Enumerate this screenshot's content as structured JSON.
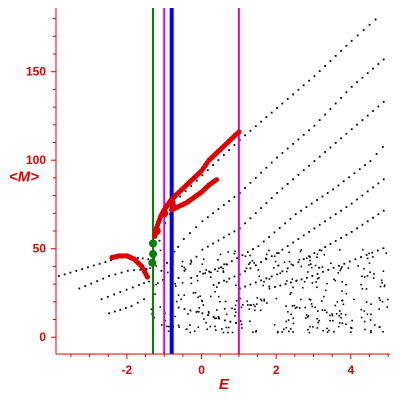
{
  "chart_data": {
    "type": "scatter",
    "title": "",
    "xlabel": "E",
    "ylabel": "<M>",
    "xlim": [
      -3.9,
      5.05
    ],
    "ylim": [
      -9.5,
      186
    ],
    "xticks": [
      -2,
      0,
      2,
      4
    ],
    "yticks": [
      0,
      50,
      100,
      150
    ],
    "xtick_labels": [
      "-2",
      "0",
      "2",
      "4"
    ],
    "ytick_labels": [
      "0",
      "50",
      "100",
      "150"
    ],
    "grid": false,
    "legend": "none",
    "colors": {
      "axes": "#e00000",
      "dots": "#000000",
      "highlight": "#e00000",
      "green_line": "#008000",
      "blue_line": "#0000ff",
      "magenta_line": "#e000e0"
    },
    "vertical_lines": [
      {
        "x": -1.3,
        "color": "green"
      },
      {
        "x": -1.0,
        "color": "magenta"
      },
      {
        "x": -0.8,
        "color": "blue"
      },
      {
        "x": 1.0,
        "color": "magenta"
      }
    ],
    "band_lines": [
      {
        "x": [
          -3.85,
          -2.6,
          -2.3,
          -2.0,
          -1.6,
          -1.3
        ],
        "y": [
          35,
          43,
          45,
          46,
          45,
          44
        ]
      },
      {
        "x": [
          -3.3,
          -2.5,
          -2.0,
          -1.5,
          -1.3
        ],
        "y": [
          28,
          35,
          38,
          39,
          40
        ]
      },
      {
        "x": [
          -2.7,
          -2.2,
          -1.7,
          -1.3
        ],
        "y": [
          22,
          26,
          30,
          33
        ]
      },
      {
        "x": [
          -2.5,
          -1.9,
          -1.4
        ],
        "y": [
          14,
          18,
          24
        ]
      },
      {
        "x": [
          -1.3,
          -1.0,
          -0.6,
          0.0,
          1.0,
          2.0,
          3.0,
          4.0,
          4.8
        ],
        "y": [
          45,
          65,
          80,
          92,
          112,
          130,
          148,
          168,
          183
        ]
      },
      {
        "x": [
          -1.1,
          -0.5,
          0.0,
          1.0,
          2.0,
          3.0,
          4.0,
          5.0
        ],
        "y": [
          38,
          56,
          66,
          82,
          102,
          120,
          142,
          160
        ]
      },
      {
        "x": [
          -0.8,
          0.0,
          1.0,
          2.0,
          3.0,
          4.0,
          5.0
        ],
        "y": [
          30,
          50,
          62,
          82,
          100,
          118,
          136
        ]
      },
      {
        "x": [
          -0.3,
          0.5,
          1.5,
          2.5,
          3.5,
          4.5,
          5.0
        ],
        "y": [
          34,
          40,
          52,
          70,
          84,
          100,
          112
        ]
      },
      {
        "x": [
          0.3,
          1.0,
          2.0,
          3.0,
          4.0,
          5.0
        ],
        "y": [
          30,
          36,
          48,
          62,
          76,
          92
        ]
      },
      {
        "x": [
          1.0,
          2.0,
          3.0,
          4.0,
          5.0
        ],
        "y": [
          28,
          36,
          48,
          60,
          74
        ]
      },
      {
        "x": [
          1.8,
          2.8,
          3.8,
          5.0
        ],
        "y": [
          28,
          34,
          42,
          52
        ]
      },
      {
        "x": [
          -0.8,
          0.0,
          0.6,
          1.2
        ],
        "y": [
          18,
          14,
          10,
          7
        ]
      }
    ],
    "highlight_series": [
      {
        "x": [
          -2.4,
          -2.2,
          -2.0,
          -1.8,
          -1.6,
          -1.45
        ],
        "y": [
          45,
          46,
          46,
          44,
          40,
          34
        ]
      },
      {
        "x": [
          -1.25,
          -1.2,
          -1.1,
          -1.0,
          -0.9,
          -0.8
        ],
        "y": [
          57,
          62,
          68,
          72,
          75,
          78
        ]
      },
      {
        "x": [
          -0.8,
          -0.6,
          -0.4,
          -0.2,
          0.0,
          0.2,
          0.4,
          0.6,
          0.8,
          1.0
        ],
        "y": [
          78,
          82,
          86,
          90,
          94,
          100,
          104,
          108,
          112,
          116
        ]
      },
      {
        "x": [
          -0.8,
          -0.6,
          -0.4,
          -0.2,
          0.0,
          0.2,
          0.4
        ],
        "y": [
          72,
          74,
          76,
          79,
          82,
          86,
          89
        ]
      }
    ],
    "large_markers": [
      {
        "x": -1.32,
        "y": 42,
        "color": "green"
      },
      {
        "x": -1.3,
        "y": 47,
        "color": "green"
      },
      {
        "x": -1.3,
        "y": 53,
        "color": "green"
      },
      {
        "x": -1.2,
        "y": 60,
        "color": "red"
      },
      {
        "x": -1.0,
        "y": 70,
        "color": "red"
      },
      {
        "x": -0.8,
        "y": 76,
        "color": "red"
      }
    ],
    "cloud": {
      "x_range": [
        -1.4,
        5.0
      ],
      "y_range": [
        3,
        50
      ],
      "count": 340
    }
  }
}
